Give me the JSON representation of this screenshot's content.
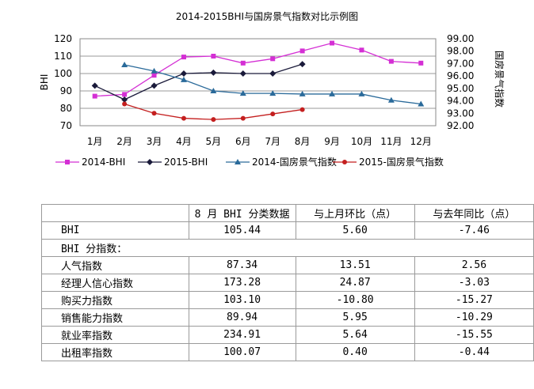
{
  "chart_data": {
    "type": "line",
    "title": "2014-2015BHI与国房景气指数对比示例图",
    "categories": [
      "1月",
      "2月",
      "3月",
      "4月",
      "5月",
      "6月",
      "7月",
      "8月",
      "9月",
      "10月",
      "11月",
      "12月"
    ],
    "ylabel": "BHI",
    "y2label": "国房景气指数",
    "ylim": [
      70,
      120
    ],
    "yticks": [
      "70",
      "80",
      "90",
      "100",
      "110",
      "120"
    ],
    "y2lim": [
      92,
      99
    ],
    "y2ticks": [
      "92.00",
      "93.00",
      "94.00",
      "95.00",
      "96.00",
      "97.00",
      "98.00",
      "99.00"
    ],
    "grid": true,
    "legend": "bottom",
    "series": [
      {
        "name": "2014-BHI",
        "axis": "left",
        "color": "#d42fd4",
        "marker": "square",
        "values": [
          87,
          88,
          99,
          109.5,
          110,
          106,
          108.5,
          113,
          117.5,
          113.5,
          107,
          106
        ]
      },
      {
        "name": "2015-BHI",
        "axis": "left",
        "color": "#1a1a3a",
        "marker": "diamond",
        "values": [
          93,
          85,
          93,
          100,
          100.5,
          100,
          100,
          105.4,
          null,
          null,
          null,
          null
        ]
      },
      {
        "name": "2014-国房景气指数",
        "axis": "right",
        "color": "#2a6a9a",
        "marker": "triangle",
        "values": [
          null,
          96.9,
          96.4,
          95.7,
          94.8,
          94.6,
          94.6,
          94.55,
          94.55,
          94.55,
          94.05,
          93.75
        ]
      },
      {
        "name": "2015-国房景气指数",
        "axis": "right",
        "color": "#c41f1f",
        "marker": "circle",
        "values": [
          null,
          93.75,
          93.0,
          92.6,
          92.5,
          92.6,
          92.95,
          93.3,
          null,
          null,
          null,
          null
        ]
      }
    ]
  },
  "table": {
    "headers": [
      "",
      "8 月 BHI 分类数据",
      "与上月环比（点）",
      "与去年同比（点）"
    ],
    "bhi_row": [
      "BHI",
      "105.44",
      "5.60",
      "-7.46"
    ],
    "section_label": "BHI 分指数：",
    "rows": [
      [
        "人气指数",
        "87.34",
        "13.51",
        "2.56"
      ],
      [
        "经理人信心指数",
        "173.28",
        "24.87",
        "-3.03"
      ],
      [
        "购买力指数",
        "103.10",
        "-10.80",
        "-15.27"
      ],
      [
        "销售能力指数",
        "89.94",
        "5.95",
        "-10.29"
      ],
      [
        "就业率指数",
        "234.91",
        "5.64",
        "-15.55"
      ],
      [
        "出租率指数",
        "100.07",
        "0.40",
        "-0.44"
      ]
    ]
  }
}
